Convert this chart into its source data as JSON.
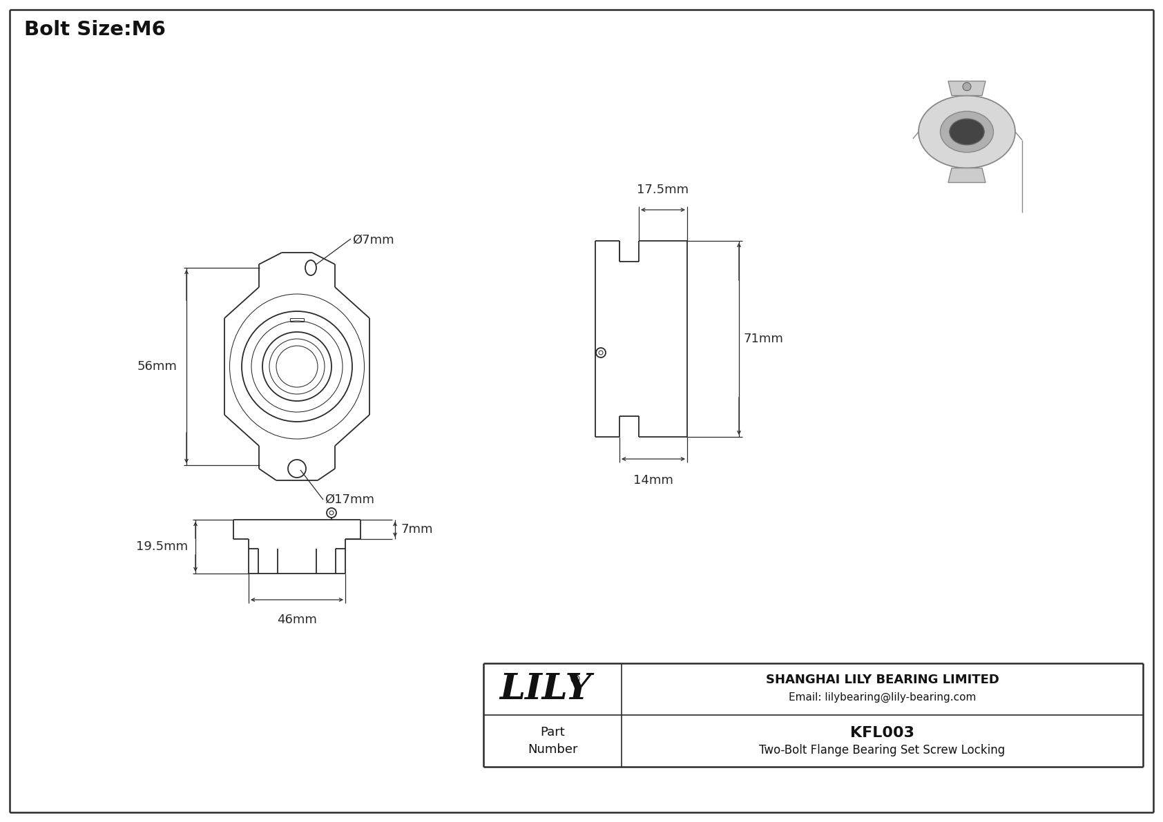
{
  "title": "Bolt Size:M6",
  "bg_color": "#ffffff",
  "line_color": "#2a2a2a",
  "annotations": {
    "bolt_hole_dia": "Ø7mm",
    "center_dia": "Ø17mm",
    "height_56": "56mm",
    "width_17_5": "17.5mm",
    "height_71": "71mm",
    "bottom_14": "14mm",
    "width_46": "46mm",
    "height_19_5": "19.5mm",
    "depth_7": "7mm"
  },
  "part_number": "KFL003",
  "part_desc": "Two-Bolt Flange Bearing Set Screw Locking",
  "company": "SHANGHAI LILY BEARING LIMITED",
  "email": "Email: lilybearing@lily-bearing.com"
}
